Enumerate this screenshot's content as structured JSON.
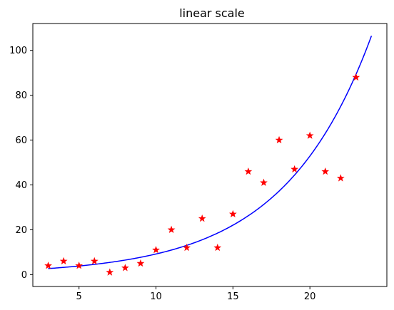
{
  "chart_data": {
    "type": "scatter",
    "title": "linear scale",
    "xlabel": "",
    "ylabel": "",
    "xlim": [
      2.0,
      25.0
    ],
    "ylim": [
      -5.3,
      112
    ],
    "x_ticks": [
      5,
      10,
      15,
      20
    ],
    "y_ticks": [
      0,
      20,
      40,
      60,
      80,
      100
    ],
    "grid": false,
    "series": [
      {
        "type": "scatter",
        "color": "#ff0000",
        "marker": "star",
        "points": [
          {
            "x": 3,
            "y": 4
          },
          {
            "x": 4,
            "y": 6
          },
          {
            "x": 5,
            "y": 4
          },
          {
            "x": 6,
            "y": 6
          },
          {
            "x": 7,
            "y": 1
          },
          {
            "x": 8,
            "y": 3
          },
          {
            "x": 9,
            "y": 5
          },
          {
            "x": 10,
            "y": 11
          },
          {
            "x": 11,
            "y": 20
          },
          {
            "x": 12,
            "y": 12
          },
          {
            "x": 13,
            "y": 25
          },
          {
            "x": 14,
            "y": 12
          },
          {
            "x": 15,
            "y": 27
          },
          {
            "x": 16,
            "y": 46
          },
          {
            "x": 17,
            "y": 41
          },
          {
            "x": 18,
            "y": 60
          },
          {
            "x": 19,
            "y": 47
          },
          {
            "x": 20,
            "y": 62
          },
          {
            "x": 21,
            "y": 46
          },
          {
            "x": 22,
            "y": 43
          },
          {
            "x": 23,
            "y": 88
          }
        ]
      },
      {
        "type": "line",
        "color": "#0000ff",
        "curve": "exponential",
        "x_range": [
          3,
          24
        ],
        "y_at_start": 2.7,
        "y_at_end": 106.5
      }
    ]
  }
}
